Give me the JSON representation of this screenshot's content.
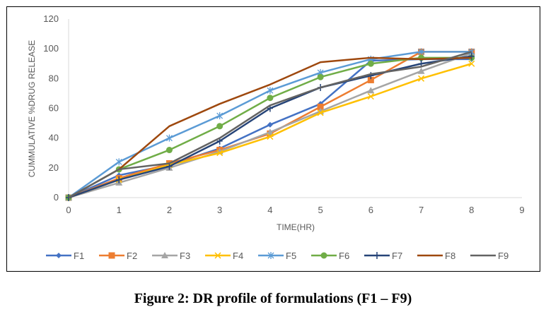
{
  "caption": "Figure 2: DR profile of formulations (F1 – F9)",
  "chart_data": {
    "type": "line",
    "title": "",
    "xlabel": "TIME(HR)",
    "ylabel": "CUMMULATIVE %DRUG RELEASE",
    "x": [
      0,
      1,
      2,
      3,
      4,
      5,
      6,
      7,
      8
    ],
    "xlim": [
      0,
      9
    ],
    "ylim": [
      0,
      120
    ],
    "xticks": [
      0,
      1,
      2,
      3,
      4,
      5,
      6,
      7,
      8,
      9
    ],
    "yticks": [
      0,
      20,
      40,
      60,
      80,
      100,
      120
    ],
    "grid": "horizontal-baseline-only",
    "legend_position": "bottom",
    "series": [
      {
        "name": "F1",
        "color": "#4472C4",
        "marker": "diamond",
        "values": [
          0,
          15,
          22,
          33,
          49,
          63,
          92,
          93,
          93
        ]
      },
      {
        "name": "F2",
        "color": "#ED7D31",
        "marker": "square",
        "values": [
          0,
          13,
          23,
          32,
          43,
          61,
          79,
          98,
          98
        ]
      },
      {
        "name": "F3",
        "color": "#A5A5A5",
        "marker": "triangle",
        "values": [
          0,
          10,
          20,
          31,
          44,
          58,
          72,
          85,
          97
        ]
      },
      {
        "name": "F4",
        "color": "#FFC000",
        "marker": "x",
        "values": [
          0,
          12,
          22,
          30,
          41,
          57,
          68,
          80,
          90
        ]
      },
      {
        "name": "F5",
        "color": "#5B9BD5",
        "marker": "star",
        "values": [
          0,
          24,
          40,
          55,
          72,
          84,
          93,
          98,
          98
        ]
      },
      {
        "name": "F6",
        "color": "#70AD47",
        "marker": "circle",
        "values": [
          0,
          19,
          32,
          48,
          67,
          81,
          90,
          94,
          94
        ]
      },
      {
        "name": "F7",
        "color": "#264478",
        "marker": "plus",
        "values": [
          0,
          12,
          21,
          38,
          60,
          74,
          82,
          90,
          95
        ]
      },
      {
        "name": "F8",
        "color": "#9E480E",
        "marker": "none",
        "values": [
          0,
          19,
          48,
          63,
          76,
          91,
          94,
          93,
          94
        ]
      },
      {
        "name": "F9",
        "color": "#636363",
        "marker": "none",
        "values": [
          0,
          19,
          23,
          40,
          62,
          74,
          83,
          88,
          98
        ]
      }
    ]
  }
}
